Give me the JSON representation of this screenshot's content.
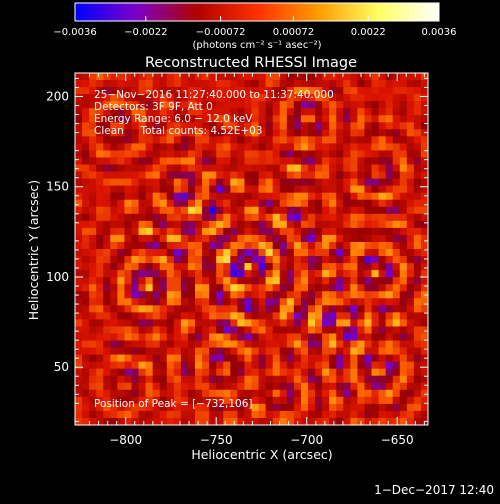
{
  "chart_data": {
    "type": "heatmap",
    "title": "Reconstructed RHESSI Image",
    "xlabel": "Heliocentric X (arcsec)",
    "ylabel": "Heliocentric Y (arcsec)",
    "xlim": [
      -828,
      -633
    ],
    "ylim": [
      18,
      213
    ],
    "x_ticks": [
      -800,
      -750,
      -700,
      -650
    ],
    "x_tick_labels": [
      "−800",
      "−750",
      "−700",
      "−650"
    ],
    "y_ticks": [
      50,
      100,
      150,
      200
    ],
    "y_tick_labels": [
      "50",
      "100",
      "150",
      "200"
    ],
    "info_lines": [
      "25−Nov−2016 11:27:40.000 to 11:37:40.000",
      "Detectors: 3F 9F, Att 0",
      "Energy Range: 6.0 − 12.0 keV",
      "Clean     Total counts: 4.52E+03"
    ],
    "peak_label": "Position of Peak = [−732,106]",
    "peak": [
      -732,
      106
    ],
    "colorbar": {
      "range": [
        -0.0036,
        0.0036
      ],
      "tick_values": [
        -0.0036,
        -0.0022,
        -0.00072,
        0.00072,
        0.0022,
        0.0036
      ],
      "tick_labels": [
        "−0.0036",
        "−0.0022",
        "−0.00072",
        "0.00072",
        "0.0022",
        "0.0036"
      ],
      "unit_label": "(photons cm⁻² s⁻¹ asec⁻²)",
      "colors": [
        "#0000ff",
        "#7a00c8",
        "#b00000",
        "#ff3000",
        "#ff9a00",
        "#ffff60",
        "#ffffff"
      ]
    },
    "hotspots": [
      {
        "x": -732,
        "y": 106,
        "v": 1.0
      },
      {
        "x": -726,
        "y": 85,
        "v": 0.7
      },
      {
        "x": -662,
        "y": 103,
        "v": 0.75
      },
      {
        "x": -788,
        "y": 96,
        "v": 0.7
      },
      {
        "x": -770,
        "y": 150,
        "v": 0.65
      },
      {
        "x": -748,
        "y": 142,
        "v": 0.55
      },
      {
        "x": -700,
        "y": 188,
        "v": 0.6
      },
      {
        "x": -660,
        "y": 158,
        "v": 0.65
      },
      {
        "x": -680,
        "y": 75,
        "v": 0.6
      },
      {
        "x": -660,
        "y": 48,
        "v": 0.65
      },
      {
        "x": -745,
        "y": 50,
        "v": 0.55
      },
      {
        "x": -805,
        "y": 182,
        "v": 0.55
      },
      {
        "x": -700,
        "y": 130,
        "v": 0.5
      },
      {
        "x": -715,
        "y": 35,
        "v": 0.55
      },
      {
        "x": -800,
        "y": 40,
        "v": 0.5
      }
    ]
  },
  "footer": {
    "date": "1−Dec−2017 12:40"
  }
}
